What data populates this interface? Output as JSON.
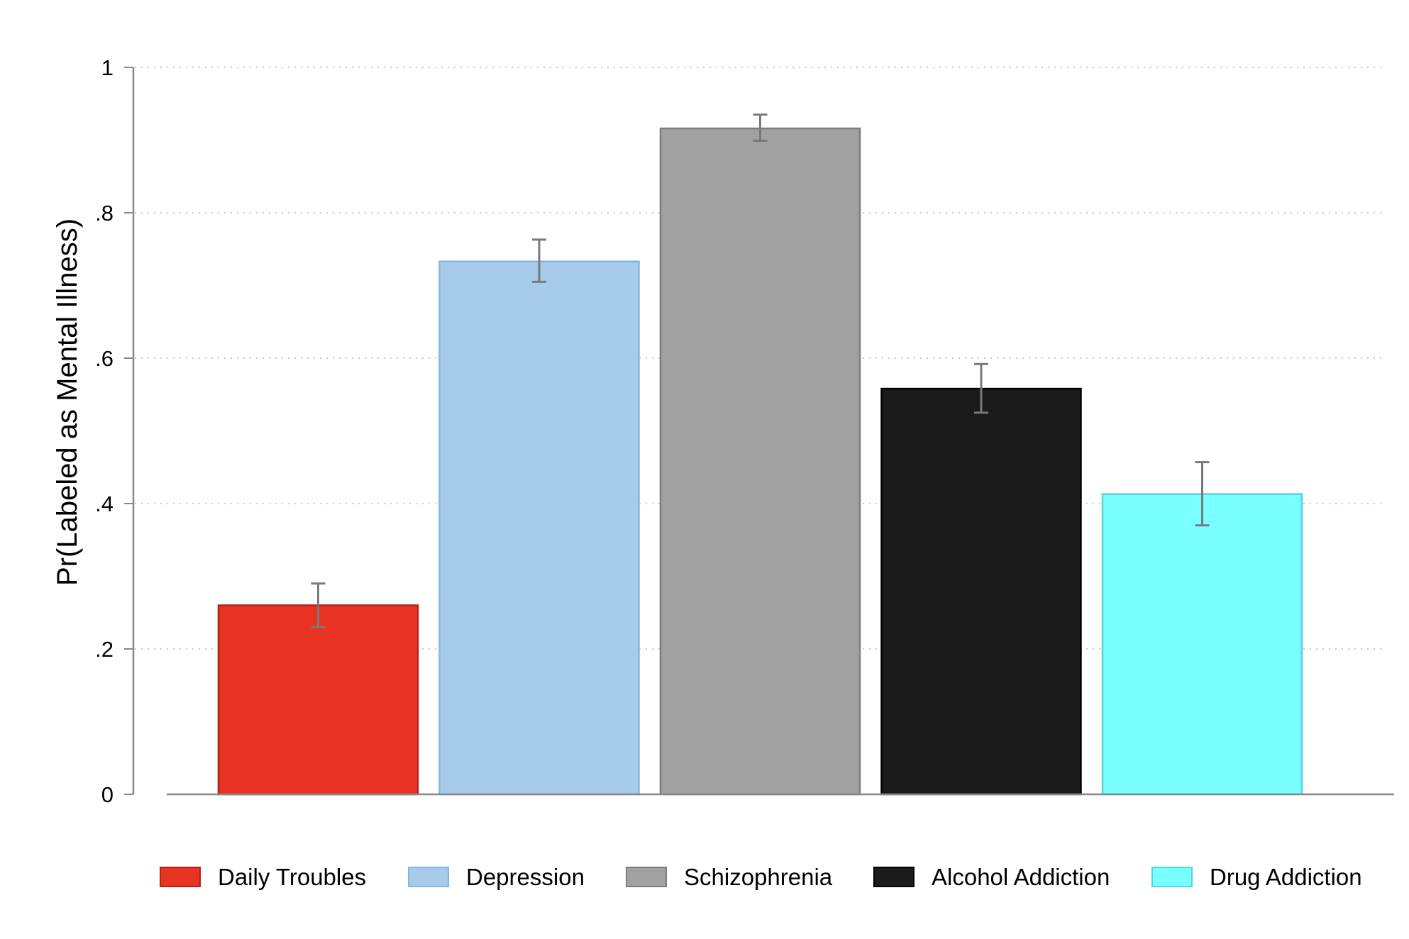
{
  "chart_data": {
    "type": "bar",
    "title": "",
    "xlabel": "",
    "ylabel": "Pr(Labeled as Mental Illness)",
    "ylim": [
      0,
      1
    ],
    "yticks": [
      0,
      0.2,
      0.4,
      0.6,
      0.8,
      1
    ],
    "ytick_labels": [
      "0",
      ".2",
      ".4",
      ".6",
      ".8",
      "1"
    ],
    "grid": "horizontal dotted",
    "legend_position": "bottom",
    "series": [
      {
        "name": "Daily Troubles",
        "value": 0.26,
        "ci": [
          0.23,
          0.29
        ],
        "color": "#e83323"
      },
      {
        "name": "Depression",
        "value": 0.733,
        "ci": [
          0.705,
          0.763
        ],
        "color": "#a6cbeb"
      },
      {
        "name": "Schizophrenia",
        "value": 0.916,
        "ci": [
          0.899,
          0.935
        ],
        "color": "#a1a1a1"
      },
      {
        "name": "Alcohol Addiction",
        "value": 0.558,
        "ci": [
          0.525,
          0.592
        ],
        "color": "#1b1b1b"
      },
      {
        "name": "Drug Addiction",
        "value": 0.413,
        "ci": [
          0.37,
          0.457
        ],
        "color": "#78ffff"
      }
    ],
    "errorbar_color": "#7a7a7a"
  }
}
